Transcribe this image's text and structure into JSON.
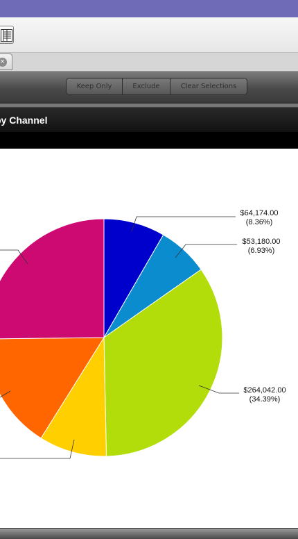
{
  "toolbar": {
    "layout_icon": "table-layout-icon"
  },
  "tab": {
    "close_symbol": "×"
  },
  "selection_bar": {
    "keep_only": "Keep Only",
    "exclude": "Exclude",
    "clear_selections": "Clear Selections"
  },
  "panel": {
    "title": "by Channel"
  },
  "chart_data": {
    "type": "pie",
    "title": "",
    "slices": [
      {
        "value": 64174.0,
        "percent": 8.36,
        "color": "#0000cc",
        "label": "$64,174.00",
        "pct_label": "(8.36%)"
      },
      {
        "value": 53180.0,
        "percent": 6.93,
        "color": "#0a8ccf",
        "label": "$53,180.00",
        "pct_label": "(6.93%)"
      },
      {
        "value": 264042.0,
        "percent": 34.39,
        "color": "#b3dd0a",
        "label": "$264,042.00",
        "pct_label": "(34.39%)"
      },
      {
        "value": 71000,
        "percent": 9.25,
        "color": "#ffcf00",
        "label": "",
        "pct_label": ""
      },
      {
        "value": 122000,
        "percent": 15.89,
        "color": "#ff6600",
        "label": "",
        "pct_label": ""
      },
      {
        "value": 193400,
        "percent": 25.18,
        "color": "#cc0a72",
        "label": "",
        "pct_label": ""
      }
    ]
  }
}
